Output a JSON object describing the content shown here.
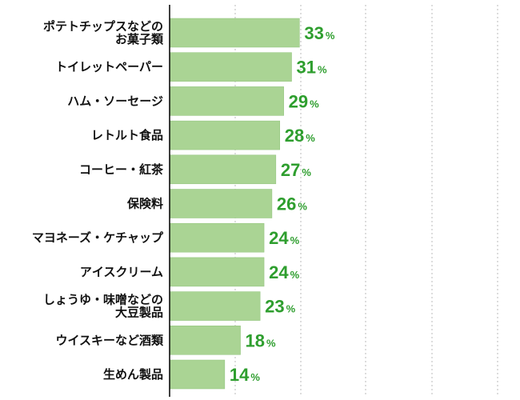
{
  "chart_data": {
    "type": "bar",
    "orientation": "horizontal",
    "categories": [
      [
        "ポテトチップスなどの",
        "お菓子類"
      ],
      [
        "トイレットペーパー"
      ],
      [
        "ハム・ソーセージ"
      ],
      [
        "レトルト食品"
      ],
      [
        "コーヒー・紅茶"
      ],
      [
        "保険料"
      ],
      [
        "マヨネーズ・ケチャップ"
      ],
      [
        "アイスクリーム"
      ],
      [
        "しょうゆ・味噌などの",
        "大豆製品"
      ],
      [
        "ウイスキーなど酒類"
      ],
      [
        "生めん製品"
      ]
    ],
    "values": [
      33,
      31,
      29,
      28,
      27,
      26,
      24,
      24,
      23,
      18,
      14
    ],
    "value_unit": "%",
    "xlim": [
      0,
      86
    ],
    "grid": true,
    "grid_style": "dotted-vertical",
    "colors": {
      "bar": "#aad494",
      "bar_border": "#8fc27a",
      "value_text": "#2e9e2e",
      "axis": "#000000",
      "grid": "#bbbbbb"
    }
  }
}
